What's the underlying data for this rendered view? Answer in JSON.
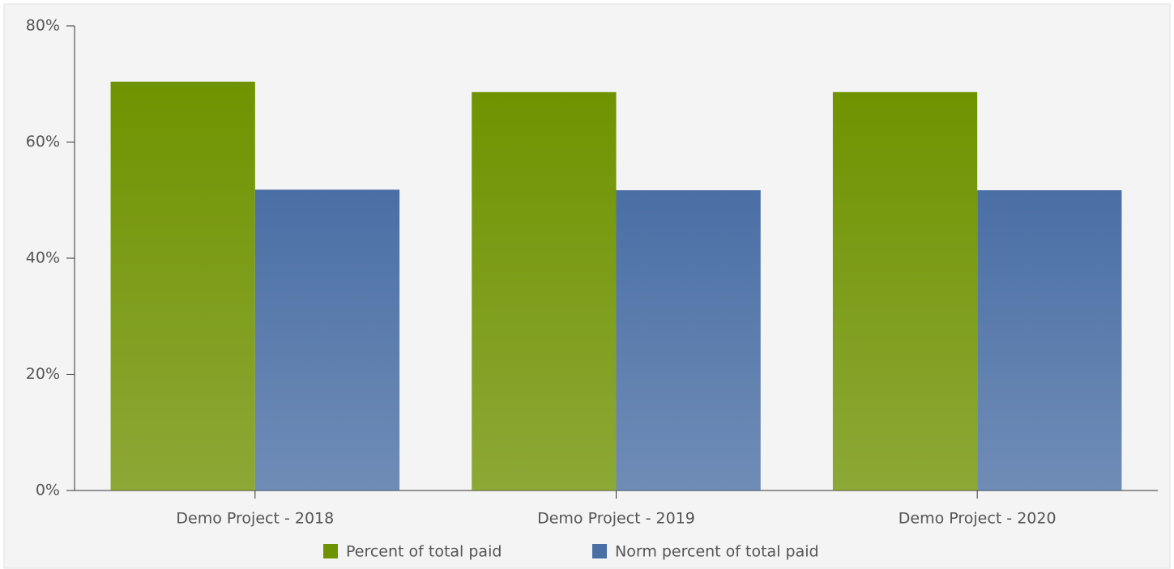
{
  "chart_data": {
    "type": "bar",
    "categories": [
      "Demo Project - 2018",
      "Demo Project - 2019",
      "Demo Project - 2020"
    ],
    "series": [
      {
        "name": "Percent of total paid",
        "color": "#6f9300",
        "values": [
          70.4,
          68.6,
          68.6
        ]
      },
      {
        "name": "Norm percent of total paid",
        "color": "#4a6fa5",
        "values": [
          51.8,
          51.7,
          51.7
        ]
      }
    ],
    "ylim": [
      0,
      80
    ],
    "yticks": [
      {
        "value": 0,
        "label": "0%"
      },
      {
        "value": 20,
        "label": "20%"
      },
      {
        "value": 40,
        "label": "40%"
      },
      {
        "value": 60,
        "label": "60%"
      },
      {
        "value": 80,
        "label": "80%"
      }
    ],
    "legend": "bottom"
  }
}
